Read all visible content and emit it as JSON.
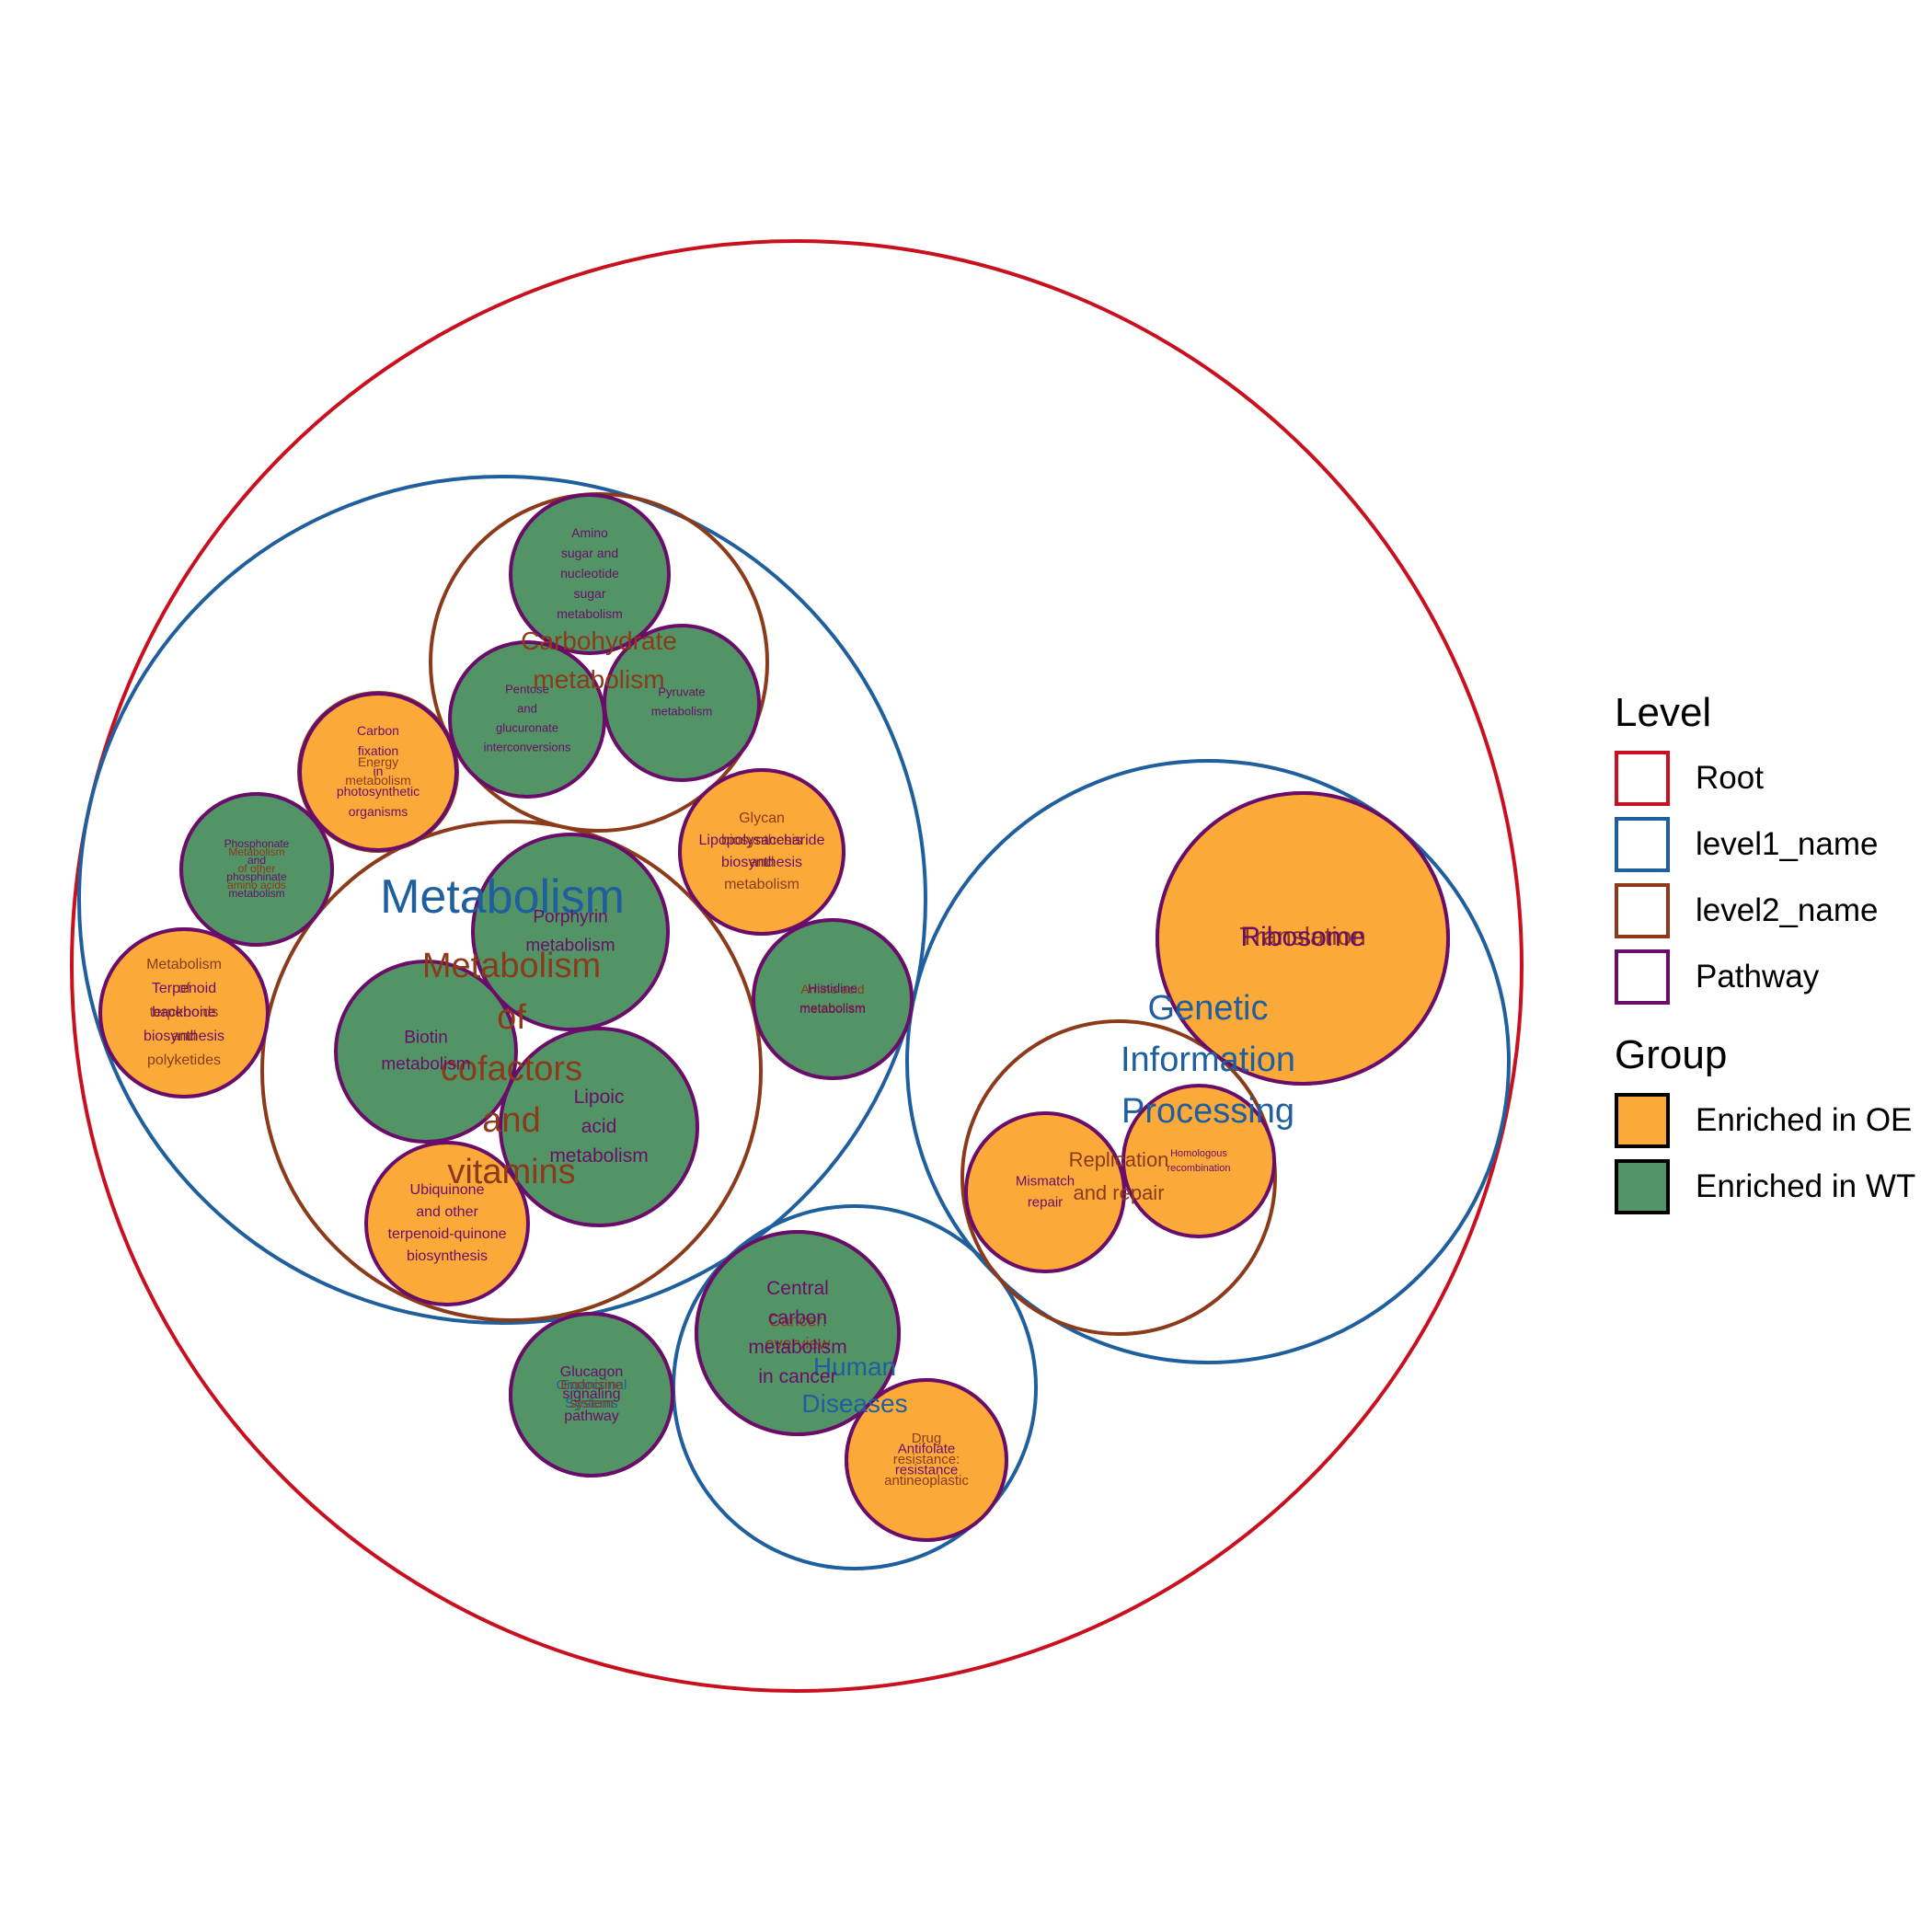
{
  "colors": {
    "Root": "#c8101e",
    "level1_name": "#1f5f9e",
    "level2_name": "#8b3a1a",
    "Pathway": "#6a0d6a",
    "Enriched in OE": "#fbaa39",
    "Enriched in WT": "#529465"
  },
  "legend": {
    "level_title": "Level",
    "levels": [
      "Root",
      "level1_name",
      "level2_name",
      "Pathway"
    ],
    "group_title": "Group",
    "groups": [
      "Enriched in OE",
      "Enriched in WT"
    ]
  },
  "nodes": [
    {
      "id": "root",
      "level": "Root",
      "lines": []
    },
    {
      "id": "l1-metabolism",
      "level": "level1_name",
      "lines": [
        "Metabolism"
      ]
    },
    {
      "id": "l1-genetic-information-processing",
      "level": "level1_name",
      "lines": [
        "Genetic",
        "Information",
        "Processing"
      ]
    },
    {
      "id": "l1-human-diseases",
      "level": "level1_name",
      "lines": [
        "Human",
        "Diseases"
      ]
    },
    {
      "id": "l1-organismal-systems",
      "level": "level1_name",
      "lines": [
        "Organismal",
        "Systems"
      ]
    },
    {
      "id": "l2-carbohydrate-metabolism",
      "level": "level2_name",
      "lines": [
        "Carbohydrate",
        "metabolism"
      ]
    },
    {
      "id": "l2-metabolism-of-cofactors-and-vitamins",
      "level": "level2_name",
      "lines": [
        "Metabolism",
        "of",
        "cofactors",
        "and",
        "vitamins"
      ]
    },
    {
      "id": "l2-energy-metabolism",
      "level": "level2_name",
      "lines": [
        "Energy",
        "metabolism"
      ]
    },
    {
      "id": "l2-metabolism-of-other-amino-acids",
      "level": "level2_name",
      "lines": [
        "Metabolism",
        "of other",
        "amino acids"
      ]
    },
    {
      "id": "l2-metabolism-of-terpenoids-and-polyketides",
      "level": "level2_name",
      "lines": [
        "Metabolism",
        "of",
        "terpenoids",
        "and",
        "polyketides"
      ]
    },
    {
      "id": "l2-glycan-biosynthesis-and-metabolism",
      "level": "level2_name",
      "lines": [
        "Glycan",
        "biosynthesis",
        "and",
        "metabolism"
      ]
    },
    {
      "id": "l2-amino-acid-metabolism",
      "level": "level2_name",
      "lines": [
        "Amino acid",
        "metabolism"
      ]
    },
    {
      "id": "l2-translation",
      "level": "level2_name",
      "lines": [
        "Translation"
      ]
    },
    {
      "id": "l2-replication-and-repair",
      "level": "level2_name",
      "lines": [
        "Replication",
        "and repair"
      ]
    },
    {
      "id": "l2-cancer-overview",
      "level": "level2_name",
      "lines": [
        "Cancer:",
        "overview"
      ]
    },
    {
      "id": "l2-drug-resistance-antineoplastic",
      "level": "level2_name",
      "lines": [
        "Drug",
        "resistance:",
        "antineoplastic"
      ]
    },
    {
      "id": "l2-endocrine-system",
      "level": "level2_name",
      "lines": [
        "Endocrine",
        "system"
      ]
    },
    {
      "id": "pw-amino-sugar",
      "level": "Pathway",
      "group": "Enriched in WT",
      "lines": [
        "Amino",
        "sugar and",
        "nucleotide",
        "sugar",
        "metabolism"
      ]
    },
    {
      "id": "pw-pentose-glucuronate",
      "level": "Pathway",
      "group": "Enriched in WT",
      "lines": [
        "Pentose",
        "and",
        "glucuronate",
        "interconversions"
      ]
    },
    {
      "id": "pw-pyruvate",
      "level": "Pathway",
      "group": "Enriched in WT",
      "lines": [
        "Pyruvate",
        "metabolism"
      ]
    },
    {
      "id": "pw-carbon-fixation",
      "level": "Pathway",
      "group": "Enriched in OE",
      "lines": [
        "Carbon",
        "fixation",
        "in",
        "photosynthetic",
        "organisms"
      ]
    },
    {
      "id": "pw-phosphonate",
      "level": "Pathway",
      "group": "Enriched in WT",
      "lines": [
        "Phosphonate",
        "and",
        "phosphinate",
        "metabolism"
      ]
    },
    {
      "id": "pw-terpenoid-backbone",
      "level": "Pathway",
      "group": "Enriched in OE",
      "lines": [
        "Terpenoid",
        "backbone",
        "biosynthesis"
      ]
    },
    {
      "id": "pw-porphyrin",
      "level": "Pathway",
      "group": "Enriched in WT",
      "lines": [
        "Porphyrin",
        "metabolism"
      ]
    },
    {
      "id": "pw-biotin",
      "level": "Pathway",
      "group": "Enriched in WT",
      "lines": [
        "Biotin",
        "metabolism"
      ]
    },
    {
      "id": "pw-lipoic-acid",
      "level": "Pathway",
      "group": "Enriched in WT",
      "lines": [
        "Lipoic",
        "acid",
        "metabolism"
      ]
    },
    {
      "id": "pw-ubiquinone",
      "level": "Pathway",
      "group": "Enriched in OE",
      "lines": [
        "Ubiquinone",
        "and other",
        "terpenoid-quinone",
        "biosynthesis"
      ]
    },
    {
      "id": "pw-lipopolysaccharide",
      "level": "Pathway",
      "group": "Enriched in OE",
      "lines": [
        "Lipopolysaccharide",
        "biosynthesis"
      ]
    },
    {
      "id": "pw-histidine",
      "level": "Pathway",
      "group": "Enriched in WT",
      "lines": [
        "Histidine",
        "metabolism"
      ]
    },
    {
      "id": "pw-ribosome",
      "level": "Pathway",
      "group": "Enriched in OE",
      "lines": [
        "Ribosome"
      ]
    },
    {
      "id": "pw-mismatch-repair",
      "level": "Pathway",
      "group": "Enriched in OE",
      "lines": [
        "Mismatch",
        "repair"
      ]
    },
    {
      "id": "pw-homologous-recombination",
      "level": "Pathway",
      "group": "Enriched in OE",
      "lines": [
        "Homologous",
        "recombination"
      ]
    },
    {
      "id": "pw-central-carbon",
      "level": "Pathway",
      "group": "Enriched in WT",
      "lines": [
        "Central",
        "carbon",
        "metabolism",
        "in cancer"
      ]
    },
    {
      "id": "pw-antifolate",
      "level": "Pathway",
      "group": "Enriched in OE",
      "lines": [
        "Antifolate",
        "resistance"
      ]
    },
    {
      "id": "pw-glucagon",
      "level": "Pathway",
      "group": "Enriched in WT",
      "lines": [
        "Glucagon",
        "signaling",
        "pathway"
      ]
    }
  ]
}
